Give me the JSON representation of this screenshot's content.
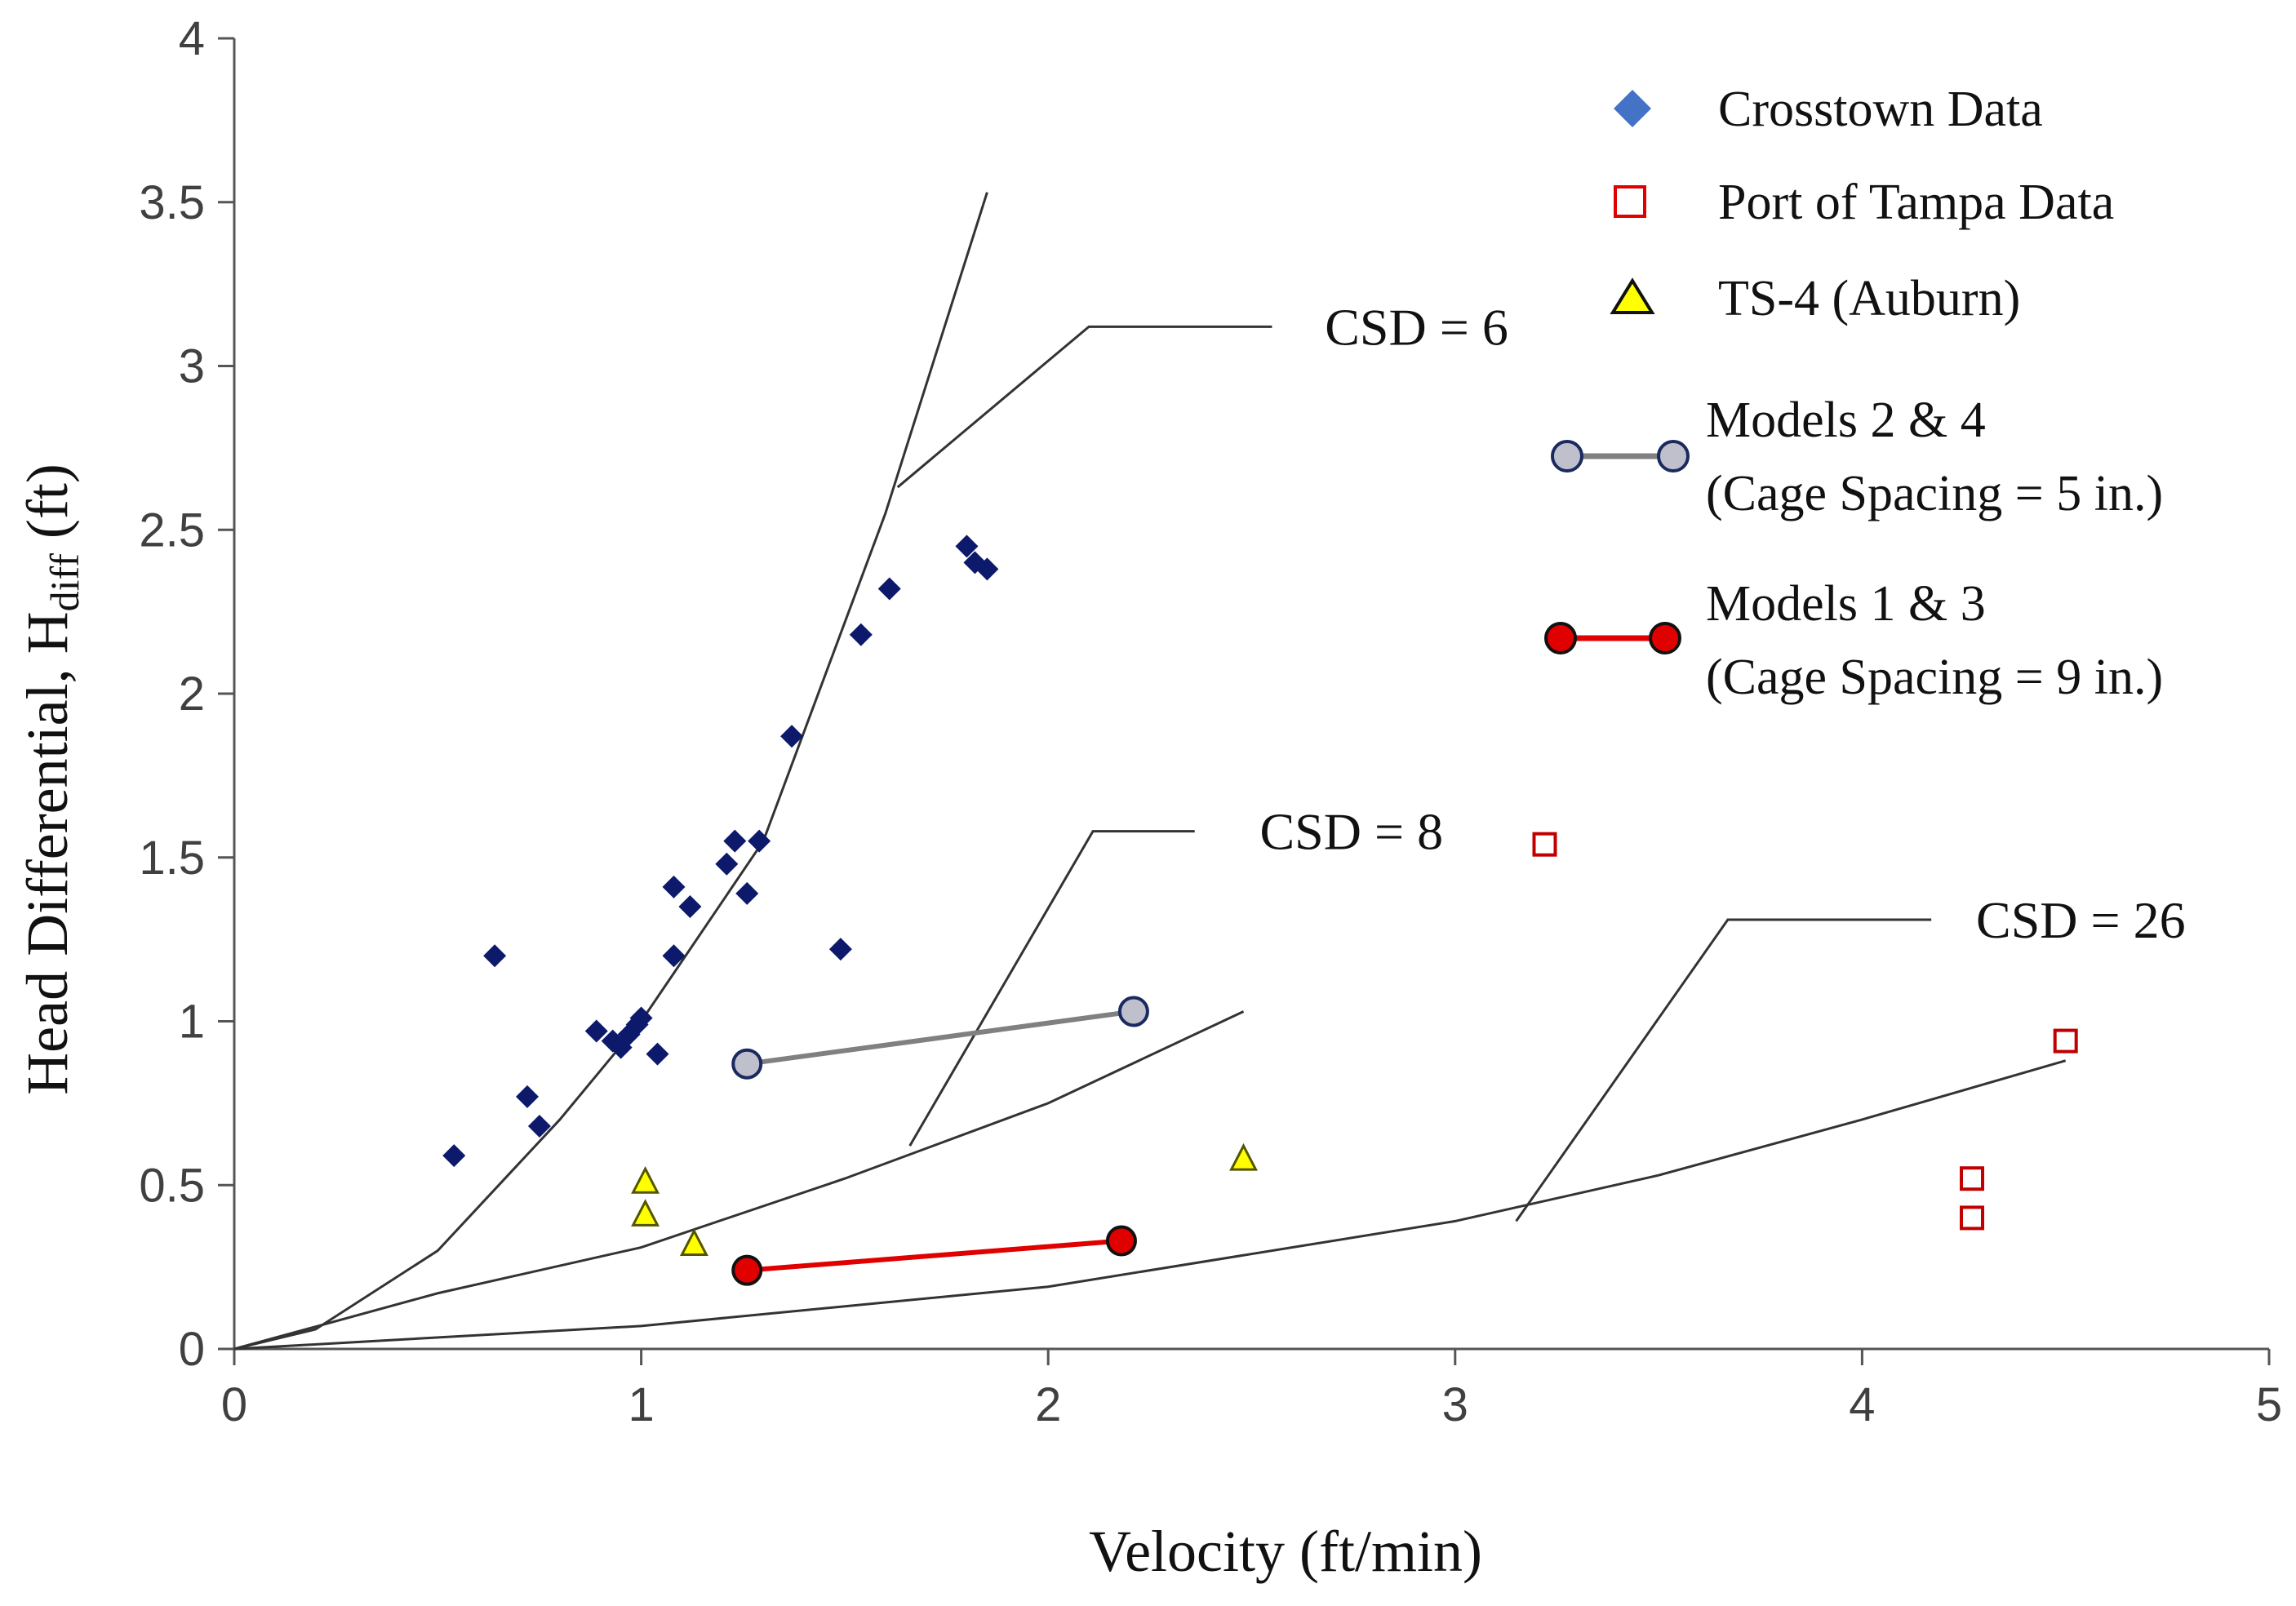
{
  "chart_data": {
    "type": "scatter",
    "xlabel": "Velocity (ft/min)",
    "ylabel_main": "Head Differential, H",
    "ylabel_sub": "diff",
    "ylabel_unit": " (ft)",
    "xlim": [
      0,
      5
    ],
    "ylim": [
      0,
      4
    ],
    "grid": false,
    "legend_position": "top-right",
    "x_ticks": [
      0,
      1,
      2,
      3,
      4,
      5
    ],
    "x_tick_labels": [
      "0",
      "1",
      "2",
      "3",
      "4",
      "5"
    ],
    "y_ticks": [
      0,
      0.5,
      1,
      1.5,
      2,
      2.5,
      3,
      3.5,
      4
    ],
    "y_tick_labels": [
      "0",
      "0.5",
      "1",
      "1.5",
      "2",
      "2.5",
      "3",
      "3.5",
      "4"
    ],
    "series": [
      {
        "name": "Crosstown Data",
        "marker": "diamond",
        "color": "#0d1a6b",
        "legend_color": "#4472c4",
        "points": [
          [
            0.54,
            0.59
          ],
          [
            0.64,
            1.2
          ],
          [
            0.72,
            0.77
          ],
          [
            0.75,
            0.68
          ],
          [
            0.89,
            0.97
          ],
          [
            0.93,
            0.94
          ],
          [
            0.95,
            0.92
          ],
          [
            0.97,
            0.96
          ],
          [
            0.99,
            0.99
          ],
          [
            1.0,
            1.01
          ],
          [
            1.04,
            0.9
          ],
          [
            1.08,
            1.2
          ],
          [
            1.08,
            1.41
          ],
          [
            1.12,
            1.35
          ],
          [
            1.21,
            1.48
          ],
          [
            1.23,
            1.55
          ],
          [
            1.26,
            1.39
          ],
          [
            1.29,
            1.55
          ],
          [
            1.37,
            1.87
          ],
          [
            1.49,
            1.22
          ],
          [
            1.54,
            2.18
          ],
          [
            1.61,
            2.32
          ],
          [
            1.8,
            2.45
          ],
          [
            1.82,
            2.4
          ],
          [
            1.85,
            2.38
          ]
        ]
      },
      {
        "name": "Port of Tampa Data",
        "marker": "square-open",
        "color": "#c00000",
        "points": [
          [
            3.22,
            1.54
          ],
          [
            4.27,
            0.52
          ],
          [
            4.27,
            0.4
          ],
          [
            4.5,
            0.94
          ]
        ]
      },
      {
        "name": "TS-4 (Auburn)",
        "marker": "triangle",
        "color": "#ffff00",
        "points": [
          [
            1.01,
            0.51
          ],
          [
            1.01,
            0.41
          ],
          [
            1.13,
            0.32
          ],
          [
            2.48,
            0.58
          ]
        ]
      },
      {
        "name": "Models 2 & 4",
        "legend_line2": "(Cage Spacing = 5 in.)",
        "marker": "circle",
        "color": "#c0c0cc",
        "line_color": "#808080",
        "points": [
          [
            1.26,
            0.87
          ],
          [
            2.21,
            1.03
          ]
        ]
      },
      {
        "name": "Models 1 & 3",
        "legend_line2": "(Cage Spacing = 9 in.)",
        "marker": "circle",
        "color": "#e00000",
        "line_color": "#e00000",
        "points": [
          [
            1.26,
            0.24
          ],
          [
            2.18,
            0.33
          ]
        ]
      }
    ],
    "curves": [
      {
        "name": "CSD = 6",
        "points": [
          [
            0,
            0
          ],
          [
            0.2,
            0.06
          ],
          [
            0.5,
            0.3
          ],
          [
            0.8,
            0.7
          ],
          [
            1.0,
            1.0
          ],
          [
            1.3,
            1.55
          ],
          [
            1.6,
            2.55
          ],
          [
            1.85,
            3.53
          ]
        ]
      },
      {
        "name": "CSD = 8",
        "points": [
          [
            0,
            0
          ],
          [
            0.5,
            0.17
          ],
          [
            1.0,
            0.31
          ],
          [
            1.5,
            0.52
          ],
          [
            2.0,
            0.75
          ],
          [
            2.48,
            1.03
          ]
        ]
      },
      {
        "name": "CSD = 26",
        "points": [
          [
            0,
            0
          ],
          [
            1.0,
            0.07
          ],
          [
            2.0,
            0.19
          ],
          [
            3.0,
            0.39
          ],
          [
            3.5,
            0.53
          ],
          [
            4.0,
            0.7
          ],
          [
            4.5,
            0.88
          ]
        ]
      }
    ],
    "annotations": [
      {
        "text": "CSD = 6",
        "leader": [
          [
            1.63,
            2.63
          ],
          [
            2.1,
            3.12
          ],
          [
            2.55,
            3.12
          ]
        ],
        "label_at": [
          2.68,
          3.12
        ]
      },
      {
        "text": "CSD = 8",
        "leader": [
          [
            1.66,
            0.62
          ],
          [
            2.11,
            1.58
          ],
          [
            2.36,
            1.58
          ]
        ],
        "label_at": [
          2.52,
          1.58
        ]
      },
      {
        "text": "CSD = 26",
        "leader": [
          [
            3.15,
            0.39
          ],
          [
            3.67,
            1.31
          ],
          [
            4.17,
            1.31
          ]
        ],
        "label_at": [
          4.28,
          1.31
        ]
      }
    ]
  }
}
